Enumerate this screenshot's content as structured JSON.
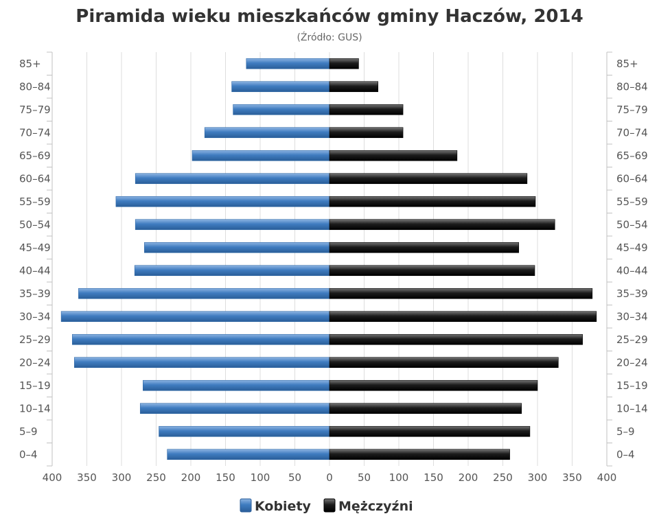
{
  "chart_data": {
    "type": "bar",
    "orientation": "horizontal",
    "title": "Piramida wieku mieszkańców gminy Haczów, 2014",
    "subtitle": "(Źródło: GUS)",
    "categories": [
      "85+",
      "80–84",
      "75–79",
      "70–74",
      "65–69",
      "60–64",
      "55–59",
      "50–54",
      "45–49",
      "40–44",
      "35–39",
      "30–34",
      "25–29",
      "20–24",
      "15–19",
      "10–14",
      "5–9",
      "0–4"
    ],
    "series": [
      {
        "name": "Kobiety",
        "color": "#3d78b8",
        "direction": "left",
        "values": [
          120,
          141,
          139,
          180,
          198,
          280,
          308,
          280,
          267,
          281,
          362,
          387,
          371,
          368,
          269,
          273,
          246,
          234
        ]
      },
      {
        "name": "Mężczyźni",
        "color": "#1a1a1a",
        "direction": "right",
        "values": [
          42,
          70,
          106,
          106,
          184,
          285,
          297,
          325,
          273,
          296,
          379,
          385,
          365,
          330,
          300,
          277,
          289,
          260
        ]
      }
    ],
    "xlim": [
      -400,
      400
    ],
    "x_ticks": [
      "400",
      "350",
      "300",
      "250",
      "200",
      "150",
      "100",
      "50",
      "0",
      "50",
      "100",
      "150",
      "200",
      "250",
      "300",
      "350",
      "400"
    ],
    "grid": true,
    "legend_position": "bottom-center"
  }
}
